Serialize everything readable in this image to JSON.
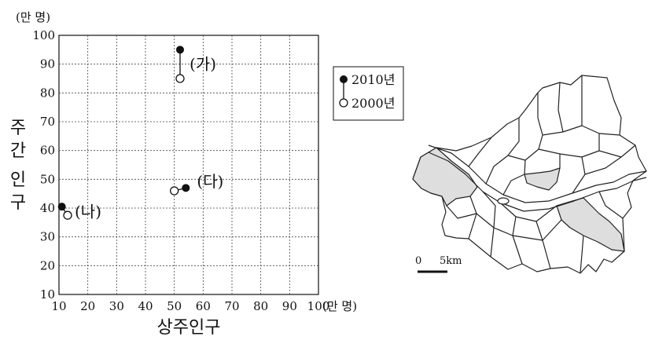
{
  "chart_data": {
    "type": "scatter",
    "xlabel": "상주인구",
    "ylabel": "주간 인구",
    "x_unit": "(만 명)",
    "y_unit": "(만 명)",
    "xlim": [
      10,
      100
    ],
    "ylim": [
      10,
      100
    ],
    "x_ticks": [
      "10",
      "20",
      "30",
      "40",
      "50",
      "60",
      "70",
      "80",
      "90",
      "100"
    ],
    "y_ticks": [
      "10",
      "20",
      "30",
      "40",
      "50",
      "60",
      "70",
      "80",
      "90",
      "100"
    ],
    "grid": true,
    "legend_position": "right",
    "series": [
      {
        "name": "2010년",
        "marker": "filled-circle"
      },
      {
        "name": "2000년",
        "marker": "open-circle"
      }
    ],
    "points": [
      {
        "label": "(가)",
        "y2010": {
          "x": 52,
          "y": 95
        },
        "y2000": {
          "x": 52,
          "y": 85
        }
      },
      {
        "label": "(나)",
        "y2010": {
          "x": 11,
          "y": 40.5
        },
        "y2000": {
          "x": 13,
          "y": 37.5
        }
      },
      {
        "label": "(다)",
        "y2010": {
          "x": 54,
          "y": 47
        },
        "y2000": {
          "x": 50,
          "y": 46
        }
      }
    ],
    "map": {
      "scale_zero": "0",
      "scale_label": "5km"
    }
  }
}
